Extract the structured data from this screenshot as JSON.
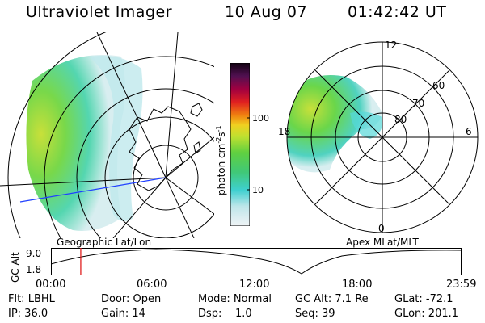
{
  "header": {
    "instrument": "Ultraviolet Imager",
    "date": "10 Aug 07",
    "time": "01:42:42 UT"
  },
  "colorbar": {
    "unit_main": "photon cm",
    "unit_sup1": "-2",
    "unit_mid": "s",
    "unit_sup2": "-1",
    "ticks": [
      "100",
      "10"
    ]
  },
  "polar_plot": {
    "labels": {
      "top": "12",
      "bottom": "0",
      "left": "18",
      "right": "6",
      "ring_60": "60",
      "ring_70": "70",
      "ring_80": "80"
    }
  },
  "map_label": "Geographic Lat/Lon",
  "polar_label": "Apex MLat/MLT",
  "timeline": {
    "y_axis_label": "GC Alt",
    "y_max": "9.0",
    "y_min": "1.8",
    "x_ticks": [
      "00:00",
      "06:00",
      "12:00",
      "18:00",
      "23:59"
    ],
    "current_time_fraction": 0.071
  },
  "status": {
    "flt": "Flt: LBHL",
    "ip": "IP: 36.0",
    "door": "Door: Open",
    "gain": "Gain: 14",
    "mode": "Mode: Normal",
    "dsp": "Dsp:    1.0",
    "gc_alt": "GC Alt: 7.1 Re",
    "seq": "Seq: 39",
    "glat": "GLat: -72.1",
    "glon": "GLon: 201.1"
  },
  "colors": {
    "aurora_green": "#5ed24a",
    "aurora_yellow": "#c8e03a",
    "aurora_cyan": "#56d8d8",
    "marker_red": "#e02020",
    "meridian_blue": "#2040ff"
  }
}
